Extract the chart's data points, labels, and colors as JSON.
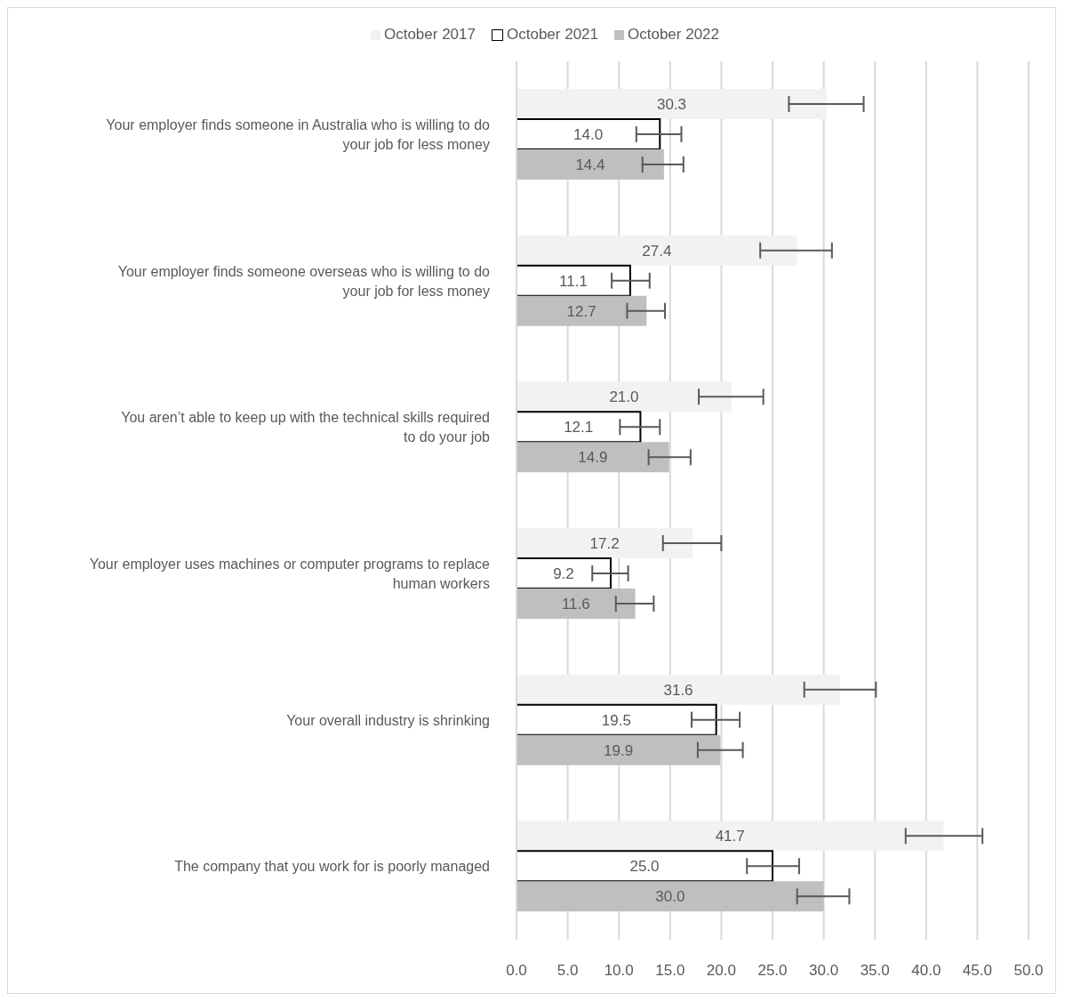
{
  "chart_data": {
    "type": "bar",
    "orientation": "horizontal",
    "categories": [
      "Your employer finds someone in Australia who is willing to do your job for less money",
      "Your employer finds someone overseas who is willing to do your job for less money",
      "You aren’t able to keep up with the technical skills required to do your job",
      "Your employer uses machines or computer programs to replace human workers",
      "Your overall industry is shrinking",
      "The company that you work for is poorly managed"
    ],
    "series": [
      {
        "name": "October 2017",
        "color": "#f2f2f2",
        "values": [
          30.3,
          27.4,
          21.0,
          17.2,
          31.6,
          41.7
        ],
        "value_labels": [
          "30.3",
          "27.4",
          "21.0",
          "17.2",
          "31.6",
          "41.7"
        ],
        "errors": [
          [
            26.6,
            33.9
          ],
          [
            23.8,
            30.8
          ],
          [
            17.8,
            24.1
          ],
          [
            14.3,
            20.0
          ],
          [
            28.1,
            35.1
          ],
          [
            38.0,
            45.5
          ]
        ]
      },
      {
        "name": "October 2021",
        "color": "#ffffff",
        "values": [
          14.0,
          11.1,
          12.1,
          9.2,
          19.5,
          25.0
        ],
        "value_labels": [
          "14.0",
          "11.1",
          "12.1",
          "9.2",
          "19.5",
          "25.0"
        ],
        "errors": [
          [
            11.7,
            16.1
          ],
          [
            9.3,
            13.0
          ],
          [
            10.1,
            14.0
          ],
          [
            7.4,
            10.9
          ],
          [
            17.1,
            21.8
          ],
          [
            22.5,
            27.6
          ]
        ]
      },
      {
        "name": "October 2022",
        "color": "#bfbfbf",
        "values": [
          14.4,
          12.7,
          14.9,
          11.6,
          19.9,
          30.0
        ],
        "value_labels": [
          "14.4",
          "12.7",
          "14.9",
          "11.6",
          "19.9",
          "30.0"
        ],
        "errors": [
          [
            12.3,
            16.3
          ],
          [
            10.8,
            14.5
          ],
          [
            12.9,
            17.0
          ],
          [
            9.7,
            13.4
          ],
          [
            17.7,
            22.1
          ],
          [
            27.4,
            32.5
          ]
        ]
      }
    ],
    "xlim": [
      0,
      50
    ],
    "xticks": [
      {
        "value": 0,
        "label": "0.0"
      },
      {
        "value": 5,
        "label": "5.0"
      },
      {
        "value": 10,
        "label": "10.0"
      },
      {
        "value": 15,
        "label": "15.0"
      },
      {
        "value": 20,
        "label": "20.0"
      },
      {
        "value": 25,
        "label": "25.0"
      },
      {
        "value": 30,
        "label": "30.0"
      },
      {
        "value": 35,
        "label": "35.0"
      },
      {
        "value": 40,
        "label": "40.0"
      },
      {
        "value": 45,
        "label": "45.0"
      },
      {
        "value": 50,
        "label": "50.0"
      }
    ],
    "grid": "x",
    "legend": "top"
  }
}
